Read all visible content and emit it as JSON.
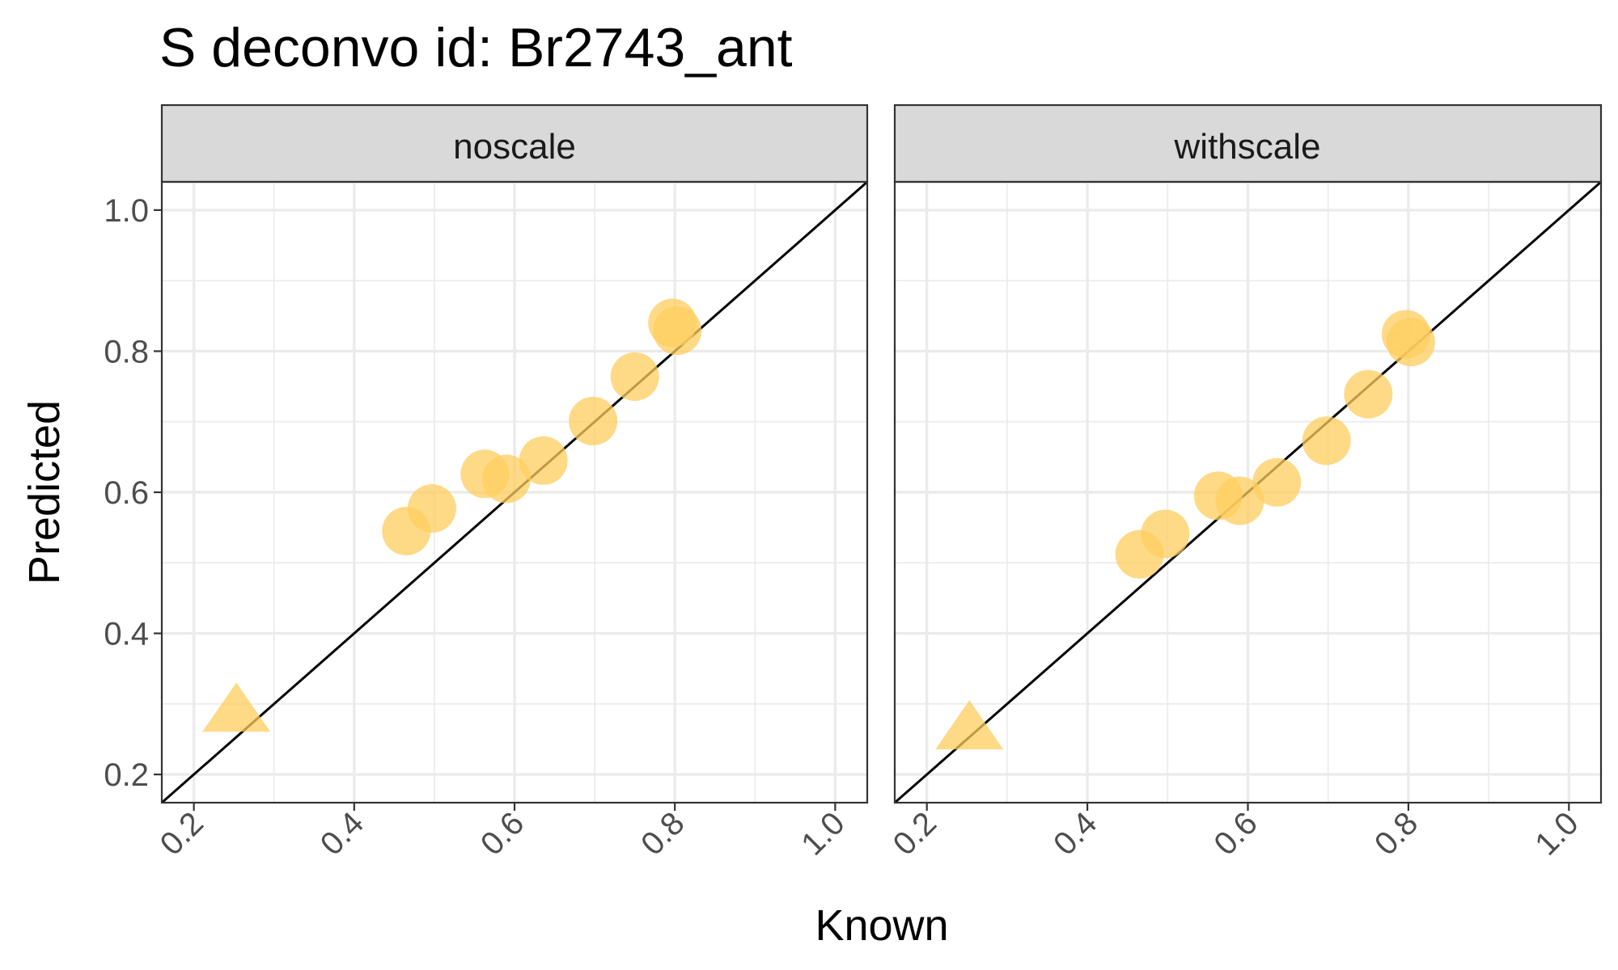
{
  "chart_data": {
    "type": "scatter",
    "title": "S deconvo id: Br2743_ant",
    "xlabel": "Known",
    "ylabel": "Predicted",
    "xlim": [
      0.16,
      1.04
    ],
    "ylim": [
      0.16,
      1.04
    ],
    "x_ticks": [
      "0.2",
      "0.4",
      "0.6",
      "0.8",
      "1.0"
    ],
    "y_ticks": [
      "0.2",
      "0.4",
      "0.6",
      "0.8",
      "1.0"
    ],
    "grid": true,
    "reference_line": "y = x",
    "point_color": "#fdcd5f",
    "panels": [
      {
        "strip": "noscale",
        "points": [
          {
            "x": 0.253,
            "y": 0.287,
            "shape": "triangle"
          },
          {
            "x": 0.465,
            "y": 0.545,
            "shape": "circle"
          },
          {
            "x": 0.497,
            "y": 0.577,
            "shape": "circle"
          },
          {
            "x": 0.563,
            "y": 0.626,
            "shape": "circle"
          },
          {
            "x": 0.59,
            "y": 0.619,
            "shape": "circle"
          },
          {
            "x": 0.636,
            "y": 0.645,
            "shape": "circle"
          },
          {
            "x": 0.698,
            "y": 0.701,
            "shape": "circle"
          },
          {
            "x": 0.75,
            "y": 0.764,
            "shape": "circle"
          },
          {
            "x": 0.797,
            "y": 0.84,
            "shape": "circle"
          },
          {
            "x": 0.803,
            "y": 0.829,
            "shape": "circle"
          }
        ]
      },
      {
        "strip": "withscale",
        "points": [
          {
            "x": 0.253,
            "y": 0.262,
            "shape": "triangle"
          },
          {
            "x": 0.465,
            "y": 0.512,
            "shape": "circle"
          },
          {
            "x": 0.497,
            "y": 0.541,
            "shape": "circle"
          },
          {
            "x": 0.563,
            "y": 0.595,
            "shape": "circle"
          },
          {
            "x": 0.59,
            "y": 0.588,
            "shape": "circle"
          },
          {
            "x": 0.636,
            "y": 0.614,
            "shape": "circle"
          },
          {
            "x": 0.698,
            "y": 0.673,
            "shape": "circle"
          },
          {
            "x": 0.75,
            "y": 0.739,
            "shape": "circle"
          },
          {
            "x": 0.797,
            "y": 0.824,
            "shape": "circle"
          },
          {
            "x": 0.803,
            "y": 0.813,
            "shape": "circle"
          }
        ]
      }
    ]
  }
}
